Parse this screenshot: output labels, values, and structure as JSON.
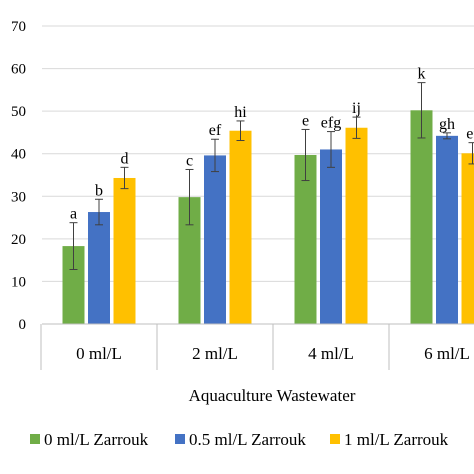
{
  "chart_data": {
    "type": "bar",
    "title": "",
    "xlabel": "Aquaculture Wastewater",
    "ylabel": "",
    "ylim": [
      0,
      70
    ],
    "yticks": [
      0,
      10,
      20,
      30,
      40,
      50,
      60,
      70
    ],
    "grid": true,
    "legend_position": "bottom",
    "categories": [
      "0 ml/L",
      "2 ml/L",
      "4 ml/L",
      "6 ml/L"
    ],
    "series": [
      {
        "name": "0 ml/L Zarrouk",
        "color": "#70ad47",
        "values": [
          18.3,
          29.8,
          39.7,
          50.2
        ],
        "errors": [
          5.5,
          6.5,
          6.0,
          6.5
        ],
        "letters": [
          "a",
          "c",
          "e",
          "k"
        ]
      },
      {
        "name": "0.5 ml/L Zarrouk",
        "color": "#4472c4",
        "values": [
          26.3,
          39.6,
          41.0,
          44.2
        ],
        "errors": [
          3.0,
          3.8,
          4.2,
          0.7
        ],
        "letters": [
          "b",
          "ef",
          "efg",
          "gh"
        ]
      },
      {
        "name": "1 ml/L Zarrouk",
        "color": "#ffc000",
        "values": [
          34.3,
          45.4,
          46.1,
          40.1
        ],
        "errors": [
          2.5,
          2.3,
          2.5,
          2.5
        ],
        "letters": [
          "d",
          "hi",
          "ij",
          "ef"
        ]
      }
    ]
  }
}
